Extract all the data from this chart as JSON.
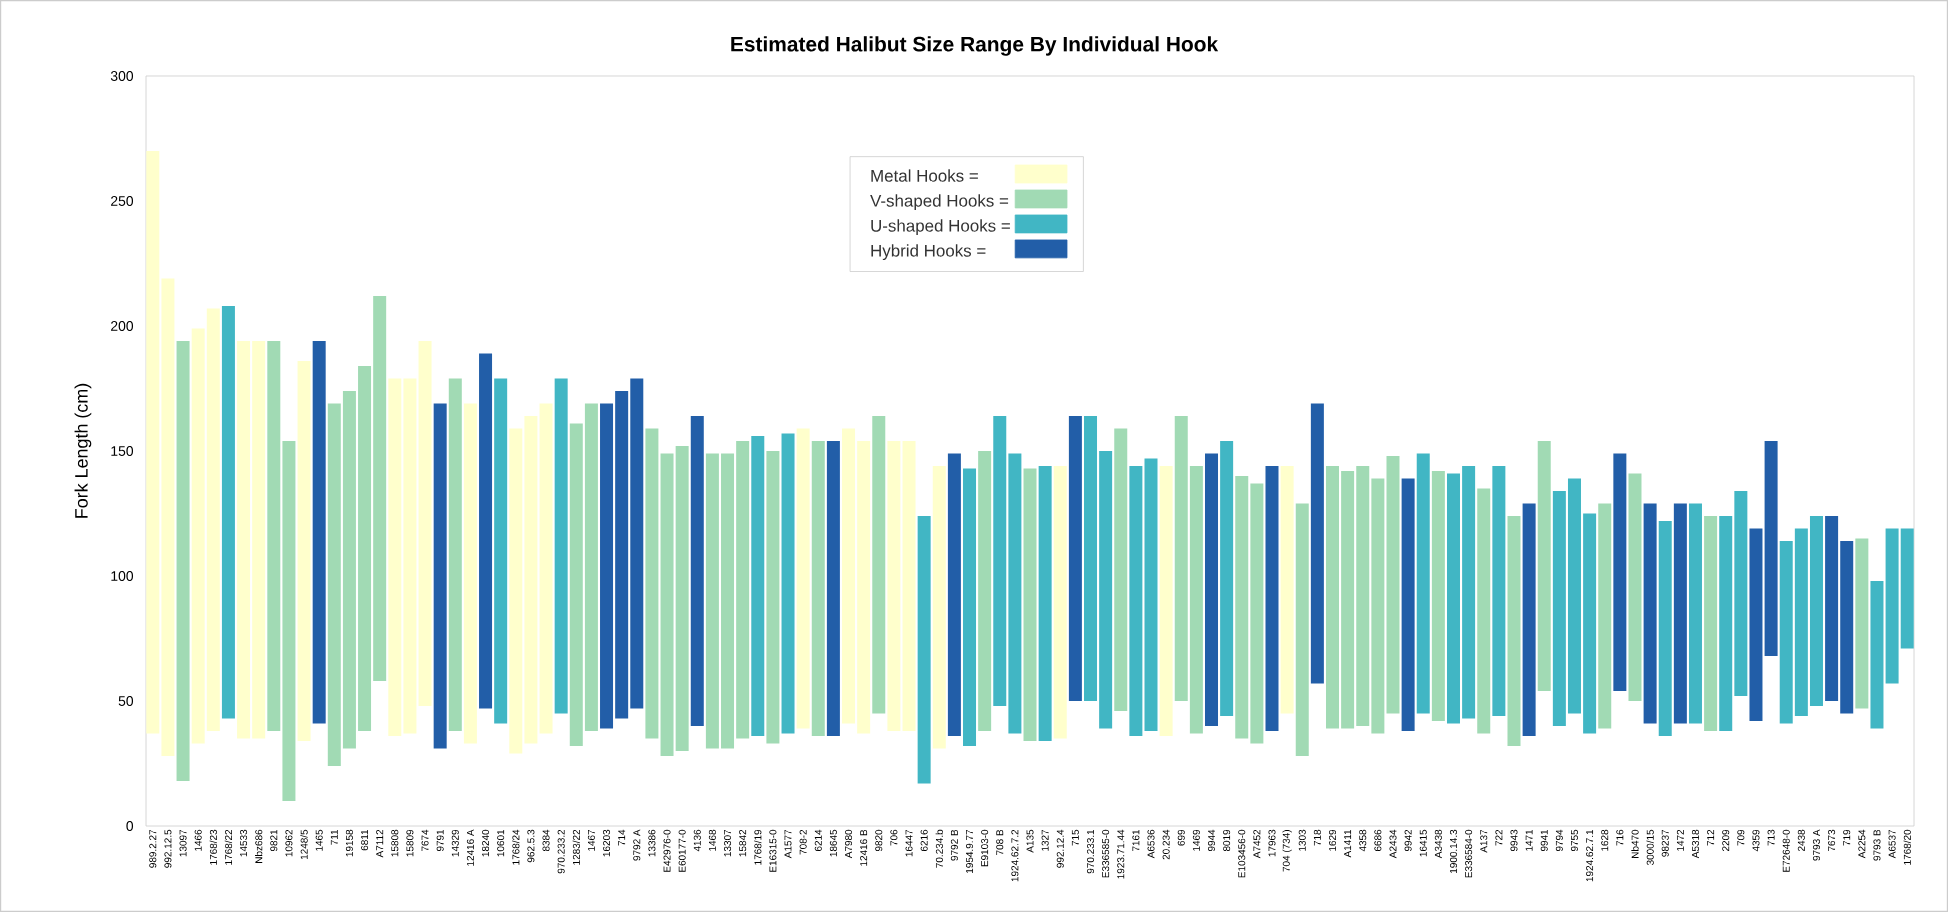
{
  "chart_data": {
    "type": "bar",
    "title": "Estimated Halibut Size Range By Individual Hook",
    "ylabel": "Fork Length (cm)",
    "categories": [
      "989.2.27",
      "992.12.5",
      "13097",
      "1466",
      "1768/23",
      "1768/22",
      "14533",
      "Nbz686",
      "9821",
      "10962",
      "1248/5",
      "1465",
      "711",
      "19158",
      "6811",
      "A7112",
      "15808",
      "15809",
      "7674",
      "9791",
      "14329",
      "12416 A",
      "18240",
      "10601",
      "1768/24",
      "962.5.3",
      "8384",
      "970.233.2",
      "1283/22",
      "1467",
      "16203",
      "714",
      "9792 A",
      "13386",
      "E42976-0",
      "E60177-0",
      "4136",
      "1468",
      "13307",
      "15842",
      "1768/19",
      "E16315-0",
      "A1577",
      "708-2",
      "6214",
      "18645",
      "A7980",
      "12416 B",
      "9820",
      "706",
      "16447",
      "6216",
      "70.234.b",
      "9792 B",
      "1954.9.77",
      "E9103-0",
      "708 B",
      "1924.62.7.2",
      "A135",
      "1327",
      "992.12.4",
      "715",
      "970.233.1",
      "E336585-0",
      "1923.71.44",
      "7161",
      "A6536",
      "20.234",
      "699",
      "1469",
      "9944",
      "8019",
      "E103456-0",
      "A7452",
      "17963",
      "704 (734)",
      "1303",
      "718",
      "1629",
      "A1411",
      "4358",
      "6686",
      "A2434",
      "9942",
      "16415",
      "A3438",
      "1900.14.3",
      "E336584-0",
      "A137",
      "722",
      "9943",
      "1471",
      "9941",
      "9794",
      "9755",
      "1924.62.7.1",
      "1628",
      "716",
      "Nb470",
      "3000/15",
      "98237",
      "1472",
      "A5318",
      "712",
      "2209",
      "709",
      "4359",
      "713",
      "E72648-0",
      "2438",
      "9793 A",
      "7673",
      "719",
      "A2254",
      "9793 B",
      "A6537",
      "1768/20"
    ],
    "ylim": [
      0,
      300
    ],
    "yticks": [
      0,
      50,
      100,
      150,
      200,
      250,
      300
    ],
    "legend": "top",
    "series": [
      {
        "name": "Metal Hooks =",
        "color": "#ffffcc",
        "values": [
          233,
          191,
          null,
          166,
          169,
          null,
          159,
          159,
          null,
          null,
          152,
          null,
          null,
          null,
          null,
          null,
          143,
          142,
          146,
          null,
          null,
          136,
          null,
          null,
          130,
          131,
          132,
          null,
          null,
          null,
          null,
          null,
          null,
          null,
          null,
          null,
          null,
          null,
          null,
          null,
          null,
          null,
          null,
          120,
          null,
          null,
          118,
          117,
          null,
          116,
          116,
          null,
          113,
          null,
          null,
          null,
          null,
          null,
          null,
          null,
          109,
          null,
          null,
          null,
          null,
          null,
          null,
          108,
          null,
          null,
          null,
          null,
          null,
          null,
          null,
          99,
          null,
          null,
          null,
          null,
          null,
          null,
          null,
          null,
          null,
          null,
          null,
          null,
          null,
          null,
          null,
          null,
          null,
          null,
          null,
          null,
          null,
          null,
          null,
          null,
          null,
          null,
          null,
          null,
          null,
          null,
          null,
          null,
          null,
          null,
          null,
          null,
          null,
          null,
          null,
          null,
          null
        ],
        "base": [
          37,
          28,
          null,
          33,
          38,
          null,
          35,
          35,
          null,
          null,
          34,
          null,
          null,
          null,
          null,
          null,
          36,
          37,
          48,
          null,
          null,
          33,
          null,
          null,
          29,
          33,
          37,
          null,
          null,
          null,
          null,
          null,
          null,
          null,
          null,
          null,
          null,
          null,
          null,
          null,
          null,
          null,
          null,
          39,
          null,
          null,
          41,
          37,
          null,
          38,
          38,
          null,
          31,
          null,
          null,
          null,
          null,
          null,
          null,
          null,
          35,
          null,
          null,
          null,
          null,
          null,
          null,
          36,
          null,
          null,
          null,
          null,
          null,
          null,
          null,
          45,
          null,
          null,
          null,
          null,
          null,
          null,
          null,
          null,
          null,
          null,
          null,
          null,
          null,
          null,
          null,
          null,
          null,
          null,
          null,
          null,
          null,
          null,
          null,
          null,
          null,
          null,
          null,
          null,
          null,
          null,
          null,
          null,
          null,
          null,
          null,
          null,
          null,
          null,
          null,
          null,
          null
        ]
      },
      {
        "name": "V-shaped Hooks =",
        "color": "#a1dab4",
        "values": [
          null,
          null,
          176,
          null,
          null,
          null,
          null,
          null,
          156,
          144,
          null,
          null,
          145,
          143,
          146,
          154,
          null,
          null,
          null,
          null,
          141,
          null,
          null,
          null,
          null,
          null,
          null,
          null,
          129,
          131,
          null,
          null,
          null,
          124,
          121,
          122,
          null,
          118,
          118,
          119,
          null,
          117,
          null,
          null,
          118,
          null,
          null,
          null,
          119,
          null,
          null,
          null,
          null,
          null,
          null,
          112,
          null,
          null,
          109,
          null,
          null,
          null,
          null,
          null,
          113,
          null,
          null,
          null,
          114,
          107,
          null,
          null,
          105,
          104,
          null,
          null,
          101,
          null,
          105,
          103,
          104,
          102,
          103,
          null,
          null,
          100,
          null,
          null,
          98,
          null,
          92,
          null,
          100,
          null,
          null,
          null,
          90,
          null,
          91,
          null,
          null,
          null,
          null,
          86,
          null,
          null,
          null,
          null,
          null,
          null,
          null,
          null,
          null,
          68,
          null,
          null,
          null
        ],
        "base": [
          null,
          null,
          18,
          null,
          null,
          null,
          null,
          null,
          38,
          10,
          null,
          null,
          24,
          31,
          38,
          58,
          null,
          null,
          null,
          null,
          38,
          null,
          null,
          null,
          null,
          null,
          null,
          null,
          32,
          38,
          null,
          null,
          null,
          35,
          28,
          30,
          null,
          31,
          31,
          35,
          null,
          33,
          null,
          null,
          36,
          null,
          null,
          null,
          45,
          null,
          null,
          null,
          null,
          null,
          null,
          38,
          null,
          null,
          34,
          null,
          null,
          null,
          null,
          null,
          46,
          null,
          null,
          null,
          50,
          37,
          null,
          null,
          35,
          33,
          null,
          null,
          28,
          null,
          39,
          39,
          40,
          37,
          45,
          null,
          null,
          42,
          null,
          null,
          37,
          null,
          32,
          null,
          54,
          null,
          null,
          null,
          39,
          null,
          50,
          null,
          null,
          null,
          null,
          38,
          null,
          null,
          null,
          null,
          null,
          null,
          null,
          null,
          null,
          47,
          null,
          null,
          null
        ]
      },
      {
        "name": "U-shaped Hooks =",
        "color": "#41b6c4",
        "values": [
          null,
          null,
          null,
          null,
          null,
          165,
          null,
          null,
          null,
          null,
          null,
          null,
          null,
          null,
          null,
          null,
          null,
          null,
          null,
          null,
          null,
          null,
          null,
          138,
          null,
          null,
          null,
          134,
          null,
          null,
          null,
          null,
          null,
          null,
          null,
          null,
          null,
          null,
          null,
          null,
          120,
          null,
          120,
          null,
          null,
          null,
          null,
          null,
          null,
          null,
          null,
          107,
          null,
          null,
          111,
          null,
          116,
          112,
          null,
          110,
          null,
          null,
          114,
          111,
          null,
          108,
          109,
          null,
          null,
          null,
          null,
          110,
          null,
          null,
          null,
          null,
          null,
          null,
          null,
          null,
          null,
          null,
          null,
          null,
          104,
          null,
          100,
          101,
          null,
          100,
          null,
          null,
          null,
          94,
          94,
          88,
          null,
          null,
          null,
          null,
          86,
          null,
          88,
          null,
          86,
          82,
          null,
          null,
          73,
          75,
          76,
          null,
          null,
          null,
          59,
          62,
          48
        ],
        "base": [
          null,
          null,
          null,
          null,
          null,
          43,
          null,
          null,
          null,
          null,
          null,
          null,
          null,
          null,
          null,
          null,
          null,
          null,
          null,
          null,
          null,
          null,
          null,
          41,
          null,
          null,
          null,
          45,
          null,
          null,
          null,
          null,
          null,
          null,
          null,
          null,
          null,
          null,
          null,
          null,
          36,
          null,
          37,
          null,
          null,
          null,
          null,
          null,
          null,
          null,
          null,
          17,
          null,
          null,
          32,
          null,
          48,
          37,
          null,
          34,
          null,
          null,
          50,
          39,
          null,
          36,
          38,
          null,
          null,
          null,
          null,
          44,
          null,
          null,
          null,
          null,
          null,
          null,
          null,
          null,
          null,
          null,
          null,
          null,
          45,
          null,
          41,
          43,
          null,
          44,
          null,
          null,
          null,
          40,
          45,
          37,
          null,
          null,
          null,
          null,
          36,
          null,
          41,
          null,
          38,
          52,
          null,
          null,
          41,
          44,
          48,
          null,
          null,
          null,
          39,
          57,
          71
        ]
      },
      {
        "name": "Hybrid Hooks =",
        "color": "#225ea8",
        "values": [
          null,
          null,
          null,
          null,
          null,
          null,
          null,
          null,
          null,
          null,
          null,
          153,
          null,
          null,
          null,
          null,
          null,
          null,
          null,
          138,
          null,
          null,
          142,
          null,
          null,
          null,
          null,
          null,
          null,
          null,
          130,
          131,
          132,
          null,
          null,
          null,
          124,
          null,
          null,
          null,
          null,
          null,
          null,
          null,
          null,
          118,
          null,
          null,
          null,
          null,
          null,
          null,
          null,
          113,
          null,
          null,
          null,
          null,
          null,
          null,
          null,
          114,
          null,
          null,
          null,
          null,
          null,
          null,
          null,
          null,
          109,
          null,
          null,
          null,
          106,
          null,
          null,
          112,
          null,
          null,
          null,
          null,
          null,
          101,
          null,
          null,
          null,
          null,
          null,
          null,
          null,
          93,
          null,
          null,
          null,
          null,
          null,
          95,
          null,
          88,
          null,
          88,
          null,
          null,
          null,
          null,
          77,
          86,
          null,
          null,
          null,
          74,
          69,
          null,
          null,
          null,
          null
        ],
        "base": [
          null,
          null,
          null,
          null,
          null,
          null,
          null,
          null,
          null,
          null,
          null,
          41,
          null,
          null,
          null,
          null,
          null,
          null,
          null,
          31,
          null,
          null,
          47,
          null,
          null,
          null,
          null,
          null,
          null,
          null,
          39,
          43,
          47,
          null,
          null,
          null,
          40,
          null,
          null,
          null,
          null,
          null,
          null,
          null,
          null,
          36,
          null,
          null,
          null,
          null,
          null,
          null,
          null,
          36,
          null,
          null,
          null,
          null,
          null,
          null,
          null,
          50,
          null,
          null,
          null,
          null,
          null,
          null,
          null,
          null,
          40,
          null,
          null,
          null,
          38,
          null,
          null,
          57,
          null,
          null,
          null,
          null,
          null,
          38,
          null,
          null,
          null,
          null,
          null,
          null,
          null,
          36,
          null,
          null,
          null,
          null,
          null,
          54,
          null,
          41,
          null,
          41,
          null,
          null,
          null,
          null,
          42,
          68,
          null,
          null,
          null,
          50,
          45,
          null,
          null,
          null,
          null
        ]
      }
    ]
  }
}
